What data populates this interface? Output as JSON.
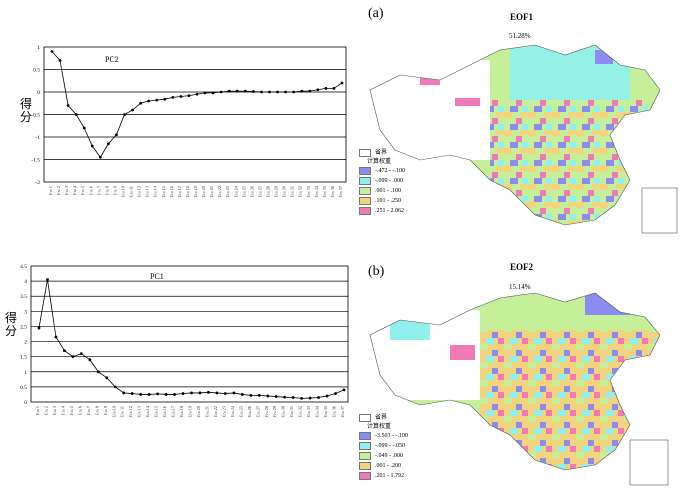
{
  "chart_data": [
    {
      "type": "line",
      "title": "PC2",
      "ylabel": "得分",
      "ylim": [
        -2,
        1
      ],
      "yticks": [
        "1",
        "0.5",
        "0",
        "-0.5",
        "-1",
        "-1.5",
        "-2"
      ],
      "categories": [
        "Era 1",
        "Era 2",
        "Era 3",
        "Era 4",
        "Era 5",
        "Era 6",
        "Era 7",
        "Era 8",
        "Era 9",
        "Era 10",
        "Era 11",
        "Era 12",
        "Era 13",
        "Era 14",
        "Era 15",
        "Era 16",
        "Era 17",
        "Era 18",
        "Era 19",
        "Era 20",
        "Era 21",
        "Era 22",
        "Era 23",
        "Era 24",
        "Era 25",
        "Era 26",
        "Era 27",
        "Era 28",
        "Era 29",
        "Era 30",
        "Era 31",
        "Era 32",
        "Era 33",
        "Era 34",
        "Era 35",
        "Era 36",
        "Era 37"
      ],
      "values": [
        0.9,
        0.7,
        -0.3,
        -0.5,
        -0.8,
        -1.2,
        -1.45,
        -1.15,
        -0.95,
        -0.5,
        -0.4,
        -0.25,
        -0.2,
        -0.18,
        -0.16,
        -0.12,
        -0.1,
        -0.08,
        -0.05,
        -0.02,
        -0.02,
        0.0,
        0.02,
        0.02,
        0.02,
        0.01,
        0.0,
        0.0,
        0.0,
        0.0,
        0.0,
        0.02,
        0.02,
        0.05,
        0.08,
        0.08,
        0.2
      ],
      "grid": "horizontal"
    },
    {
      "type": "line",
      "title": "PC1",
      "ylabel": "得分",
      "ylim": [
        0,
        4.5
      ],
      "yticks": [
        "4.5",
        "4",
        "3.5",
        "3",
        "2.5",
        "2",
        "1.5",
        "1",
        "0.5",
        "0"
      ],
      "categories": [
        "Era 1",
        "Era 2",
        "Era 3",
        "Era 4",
        "Era 5",
        "Era 6",
        "Era 7",
        "Era 8",
        "Era 9",
        "Era 10",
        "Era 11",
        "Era 12",
        "Era 13",
        "Era 14",
        "Era 15",
        "Era 16",
        "Era 17",
        "Era 18",
        "Era 19",
        "Era 20",
        "Era 21",
        "Era 22",
        "Era 23",
        "Era 24",
        "Era 25",
        "Era 26",
        "Era 27",
        "Era 28",
        "Era 29",
        "Era 30",
        "Era 31",
        "Era 32",
        "Era 33",
        "Era 34",
        "Era 35",
        "Era 36",
        "Era 37"
      ],
      "values": [
        2.45,
        4.05,
        2.15,
        1.7,
        1.5,
        1.6,
        1.4,
        1.0,
        0.8,
        0.5,
        0.3,
        0.28,
        0.25,
        0.25,
        0.27,
        0.25,
        0.25,
        0.28,
        0.3,
        0.3,
        0.32,
        0.3,
        0.28,
        0.3,
        0.25,
        0.22,
        0.22,
        0.2,
        0.18,
        0.16,
        0.15,
        0.12,
        0.13,
        0.15,
        0.2,
        0.28,
        0.4
      ],
      "grid": "horizontal"
    }
  ],
  "maps": {
    "top": {
      "panel": "(a)",
      "title": "EOF1",
      "percent": "51.28%",
      "legend_boundary": "省界",
      "legend_title": "计算权重",
      "legend": [
        {
          "label": "-.472 - -.100",
          "color": "#8c8cf0"
        },
        {
          "label": "-.099 - .000",
          "color": "#8ff0ee"
        },
        {
          "label": ".001 - .100",
          "color": "#c6ef9a"
        },
        {
          "label": ".101 - .250",
          "color": "#f2d37e"
        },
        {
          "label": ".251 - 2.062",
          "color": "#f07ab8"
        }
      ]
    },
    "bottom": {
      "panel": "(b)",
      "title": "EOF2",
      "percent": "15.14%",
      "legend_boundary": "省界",
      "legend_title": "计算权重",
      "legend": [
        {
          "label": "-3.503 - -.100",
          "color": "#8c8cf0"
        },
        {
          "label": "-.099 - -.050",
          "color": "#8ff0ee"
        },
        {
          "label": "-.049 - .000",
          "color": "#c6ef9a"
        },
        {
          "label": ".001 - .200",
          "color": "#f2d37e"
        },
        {
          "label": ".201 - 1.792",
          "color": "#f07ab8"
        }
      ]
    }
  }
}
